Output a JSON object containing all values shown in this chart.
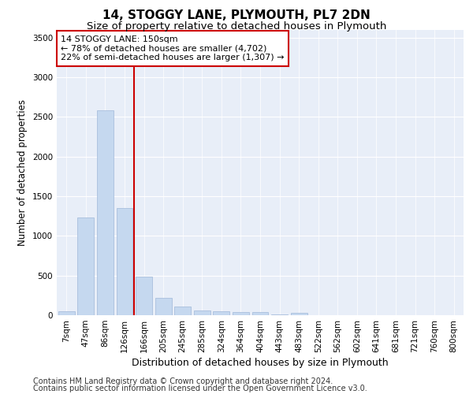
{
  "title": "14, STOGGY LANE, PLYMOUTH, PL7 2DN",
  "subtitle": "Size of property relative to detached houses in Plymouth",
  "xlabel": "Distribution of detached houses by size in Plymouth",
  "ylabel": "Number of detached properties",
  "footer_line1": "Contains HM Land Registry data © Crown copyright and database right 2024.",
  "footer_line2": "Contains public sector information licensed under the Open Government Licence v3.0.",
  "annotation_line1": "14 STOGGY LANE: 150sqm",
  "annotation_line2": "← 78% of detached houses are smaller (4,702)",
  "annotation_line3": "22% of semi-detached houses are larger (1,307) →",
  "bar_labels": [
    "7sqm",
    "47sqm",
    "86sqm",
    "126sqm",
    "166sqm",
    "205sqm",
    "245sqm",
    "285sqm",
    "324sqm",
    "364sqm",
    "404sqm",
    "443sqm",
    "483sqm",
    "522sqm",
    "562sqm",
    "602sqm",
    "641sqm",
    "681sqm",
    "721sqm",
    "760sqm",
    "800sqm"
  ],
  "bar_values": [
    50,
    1230,
    2580,
    1350,
    490,
    215,
    105,
    55,
    45,
    40,
    35,
    5,
    30,
    3,
    2,
    1,
    1,
    1,
    1,
    1,
    1
  ],
  "bar_color": "#c5d8ef",
  "bar_edge_color": "#a0b8d8",
  "reference_line_color": "#cc0000",
  "ylim": [
    0,
    3600
  ],
  "yticks": [
    0,
    500,
    1000,
    1500,
    2000,
    2500,
    3000,
    3500
  ],
  "background_color": "#e8eef8",
  "grid_color": "#ffffff",
  "title_fontsize": 11,
  "subtitle_fontsize": 9.5,
  "ylabel_fontsize": 8.5,
  "xlabel_fontsize": 9,
  "tick_fontsize": 7.5,
  "footer_fontsize": 7,
  "annotation_fontsize": 8
}
